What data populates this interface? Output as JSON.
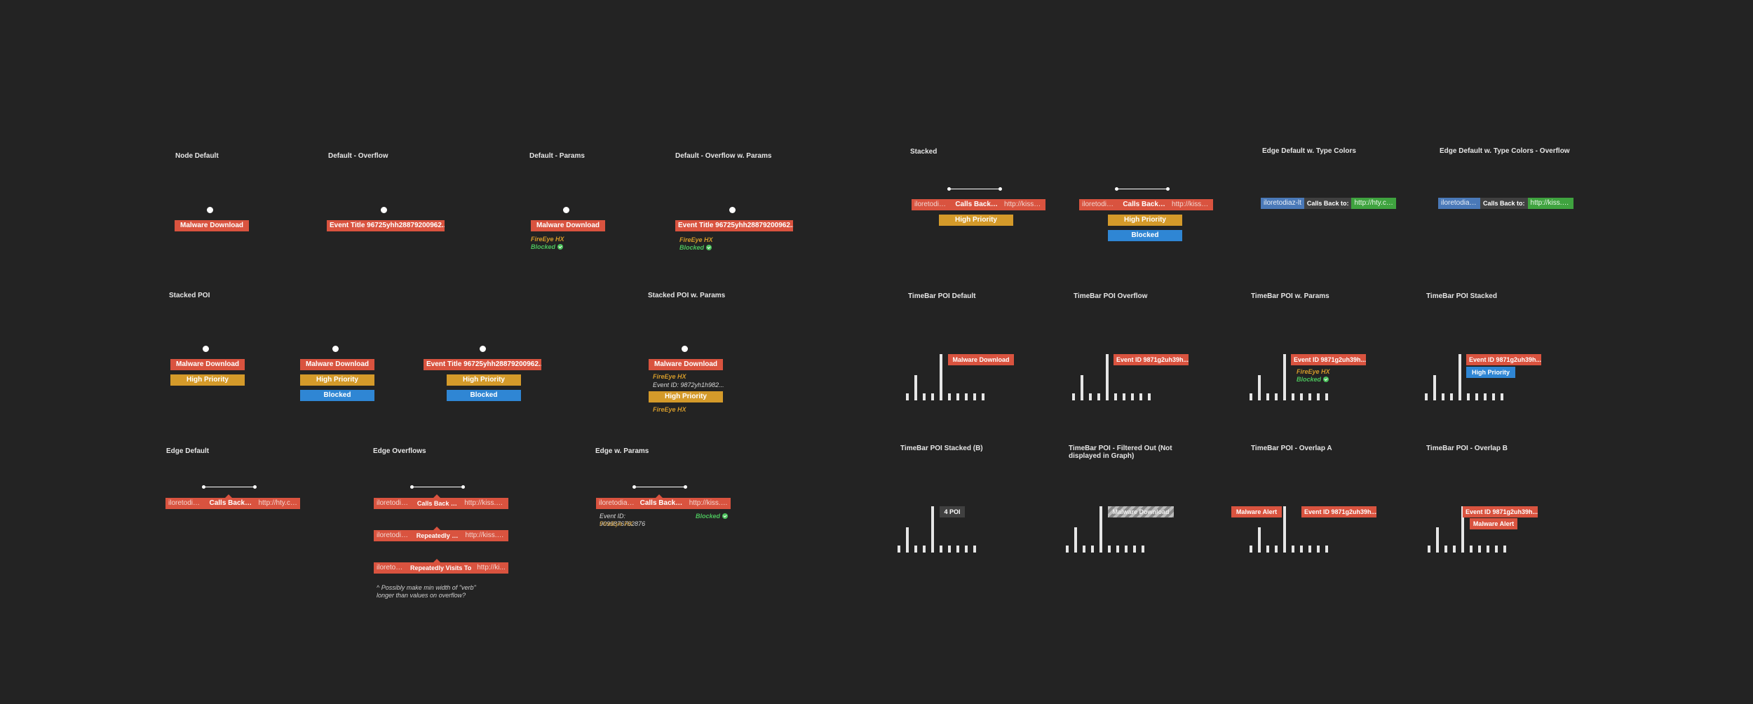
{
  "titles": {
    "node_default": "Node Default",
    "default_overflow": "Default - Overflow",
    "default_params": "Default - Params",
    "default_overflow_params": "Default - Overflow w. Params",
    "stacked": "Stacked",
    "edge_type_colors": "Edge Default w. Type Colors",
    "edge_type_colors_overflow": "Edge Default w. Type Colors - Overflow",
    "stacked_poi": "Stacked POI",
    "stacked_poi_params": "Stacked POI w. Params",
    "timebar_default": "TimeBar POI Default",
    "timebar_overflow": "TimeBar POI Overflow",
    "timebar_params": "TimeBar POI w. Params",
    "timebar_stacked": "TimeBar POI Stacked",
    "edge_default": "Edge Default",
    "edge_overflows": "Edge Overflows",
    "edge_params": "Edge w. Params",
    "timebar_stacked_b": "TimeBar POI Stacked (B)",
    "timebar_filtered_1": "TimeBar POI - Filtered Out (Not",
    "timebar_filtered_2": "displayed in Graph)",
    "timebar_overlap_a": "TimeBar POI - Overlap A",
    "timebar_overlap_b": "TimeBar POI - Overlap B"
  },
  "labels": {
    "malware_download": "Malware Download",
    "event_title_overflow": "Event Title 96725yhh28879200962...",
    "high_priority": "High Priority",
    "blocked": "Blocked",
    "event_id_overflow": "Event ID 9871g2uh39h...",
    "malware_alert": "Malware Alert",
    "four_poi": "4 POI",
    "filtered_hidden": "Malware Download"
  },
  "params": {
    "fireeye_hx": "FireEye HX",
    "blocked": "Blocked",
    "event_id_line": "Event ID: 9872yh1h982...",
    "edge_event_id": "Event ID:",
    "edge_event_val_1": "9099876762876",
    "edge_event_val_2": "FireEye HX"
  },
  "edges": {
    "src_full": "iloretodiaz-lt",
    "verb_calls": "Calls Back to:",
    "dst_short": "http://hty.com",
    "dst_overflow": "http://kiss.o...",
    "src_overflow": "iloretodiaz...",
    "verb_calls_overflow": "Calls Back to:",
    "src_overflow_2": "iloretodiaz...",
    "verb_repeated": "Repeatedly V...",
    "dst_overflow_2": "http://kiss.o...",
    "src_overflow_3": "iloretod...",
    "verb_visits": "Repeatedly Visits To",
    "dst_overflow_3": "http://ki...",
    "src_colored": "iloretodiaz-lt",
    "verb_colored": "Calls Back to:",
    "dst_colored": "http://hty.com",
    "src_colored_overflow": "iloretodiaz...",
    "verb_colored_overflow": "Calls Back to:",
    "dst_colored_overflow": "http://kiss.o..."
  },
  "notes": {
    "line1": "^ Possibly make min width of \"verb\"",
    "line2": "longer than values on overflow?"
  },
  "timebar": {
    "levels": [
      0.15,
      0.55,
      0.15,
      0.15,
      1.0,
      0.15,
      0.15,
      0.15,
      0.15,
      0.15
    ]
  },
  "colors": {
    "red": "#d9533f",
    "gold": "#d49a2a",
    "blue": "#2f86d4",
    "green": "#3fa33f",
    "slate": "#4a79b8",
    "bg": "#232323"
  }
}
